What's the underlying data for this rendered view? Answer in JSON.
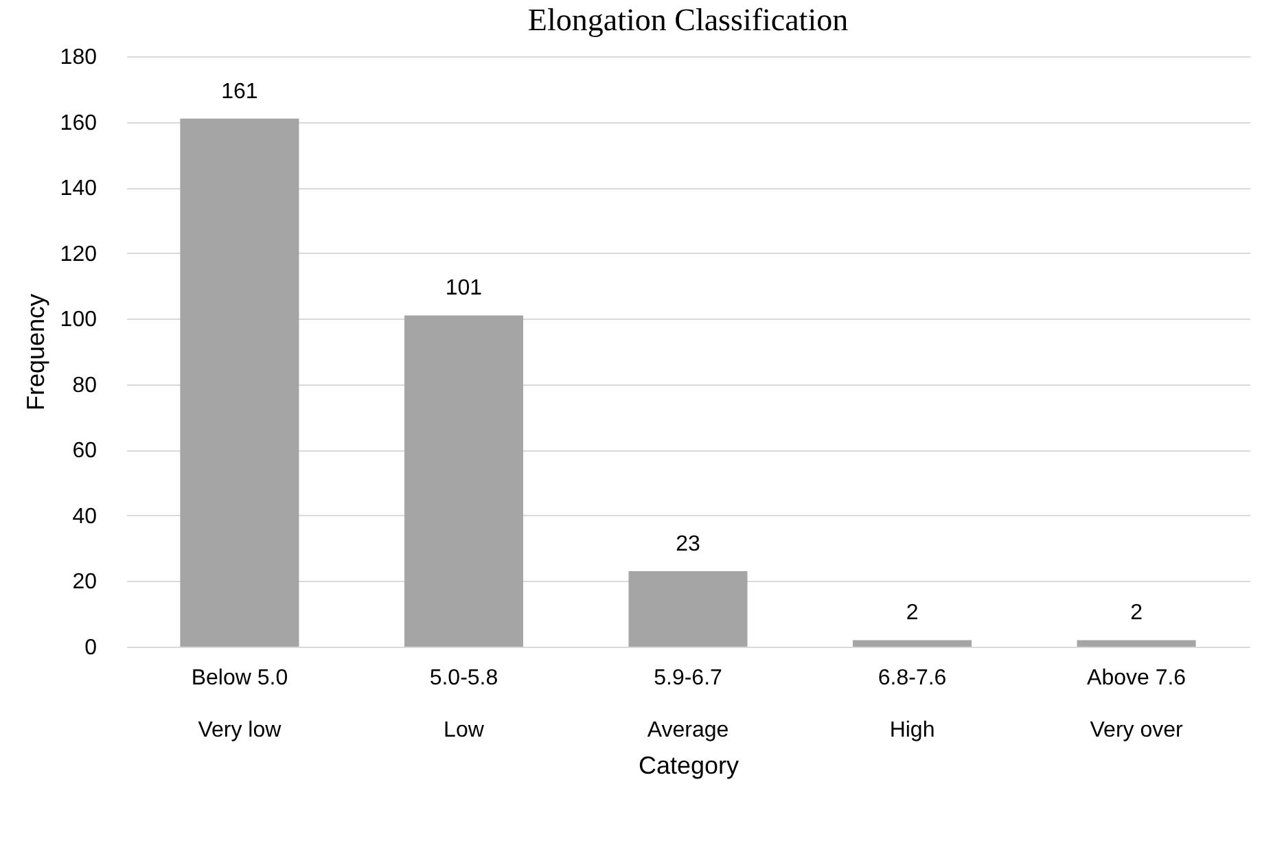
{
  "chart_data": {
    "type": "bar",
    "title": "Elongation Classification",
    "xlabel": "Category",
    "ylabel": "Frequency",
    "categories": [
      "Below 5.0\nVery low",
      "5.0-5.8\nLow",
      "5.9-6.7\nAverage",
      "6.8-7.6\nHigh",
      "Above 7.6\nVery over"
    ],
    "values": [
      161,
      101,
      23,
      2,
      2
    ],
    "color": "#a5a5a5",
    "ylim": [
      0,
      180
    ],
    "yticks": [
      0,
      20,
      40,
      60,
      80,
      100,
      120,
      140,
      160,
      180
    ],
    "grid": "y",
    "data_labels": true
  }
}
